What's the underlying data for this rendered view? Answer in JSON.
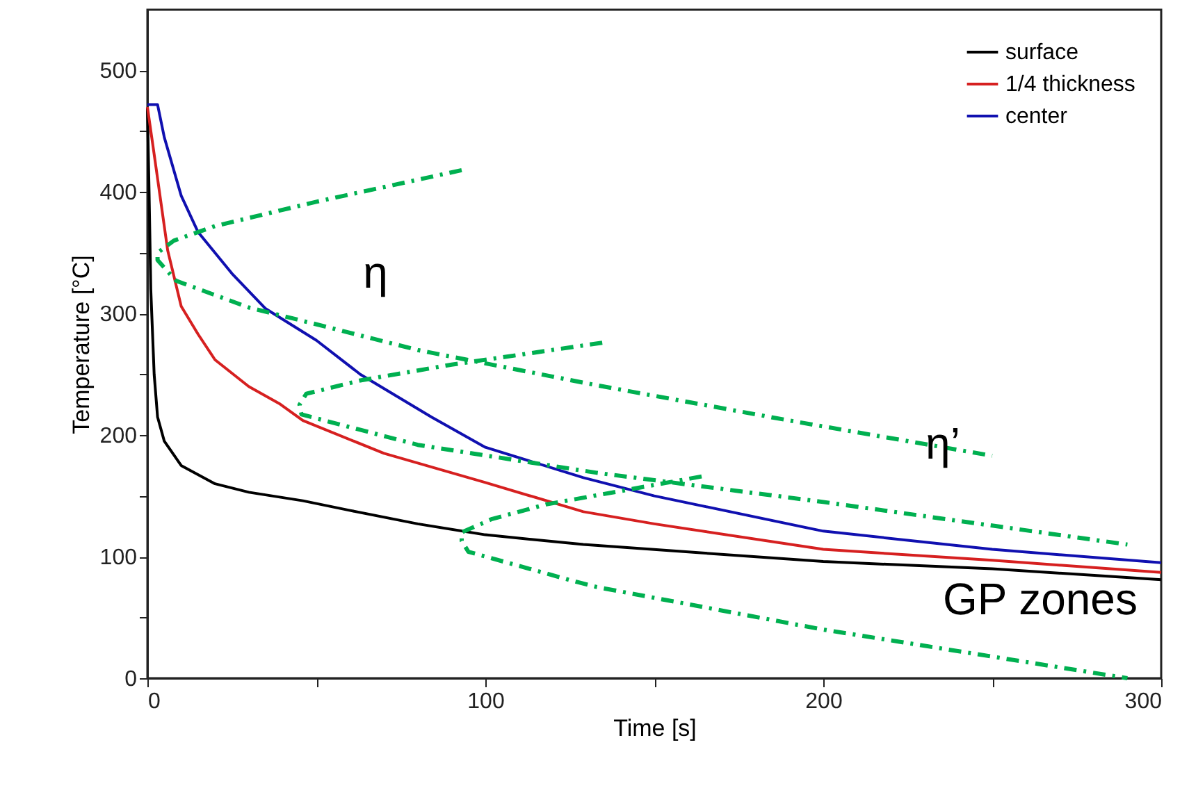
{
  "chart_data": {
    "type": "line",
    "xlabel": "Time [s]",
    "ylabel": "Temperature [°C]",
    "xlim": [
      0,
      300
    ],
    "ylim": [
      0,
      550
    ],
    "xticks": [
      0,
      {
        "value": 50,
        "label": null
      },
      100,
      {
        "value": 150,
        "label": null
      },
      200,
      {
        "value": 250,
        "label": null
      },
      300
    ],
    "yticks": [
      0,
      {
        "value": 50,
        "label": null
      },
      100,
      {
        "value": 150,
        "label": null
      },
      200,
      {
        "value": 250,
        "label": null
      },
      300,
      {
        "value": 350,
        "label": null
      },
      400,
      {
        "value": 450,
        "label": null
      },
      500
    ],
    "grid": false,
    "legend": "top right",
    "series": [
      {
        "name": "surface",
        "color": "#000000",
        "x": [
          0,
          0.5,
          1,
          2,
          3,
          5,
          10,
          20,
          30,
          46,
          60,
          80,
          100,
          129,
          200,
          250,
          300
        ],
        "values": [
          469,
          400,
          320,
          250,
          215,
          195,
          175,
          160,
          153,
          146,
          138,
          127,
          118,
          110,
          96,
          90,
          81
        ]
      },
      {
        "name": "1/4 thickness",
        "color": "#d62020",
        "x": [
          0,
          2,
          6,
          10,
          15,
          20,
          30,
          39,
          46,
          70,
          100,
          129,
          150,
          200,
          250,
          300
        ],
        "values": [
          470,
          431,
          352,
          306,
          283,
          262,
          240,
          226,
          212,
          185,
          161,
          137,
          127,
          106,
          97,
          87
        ]
      },
      {
        "name": "center",
        "color": "#1010b0",
        "x": [
          0,
          3,
          5,
          10,
          15,
          25,
          35,
          50,
          63,
          84,
          100,
          129,
          150,
          200,
          250,
          300
        ],
        "values": [
          472,
          472,
          445,
          397,
          367,
          333,
          304,
          278,
          250,
          215,
          190,
          165,
          150,
          121,
          106,
          95
        ]
      },
      {
        "type": "line",
        "color": "#00b050",
        "line_style": "dashed",
        "x": [
          93,
          50,
          20,
          7.8,
          3,
          3,
          8.5,
          30,
          46,
          80,
          133,
          190,
          250
        ],
        "values": [
          418,
          392,
          372,
          360,
          350,
          344,
          327,
          305,
          294,
          270,
          241,
          212,
          183
        ]
      },
      {
        "type": "line",
        "color": "#00b050",
        "line_style": "dashed",
        "x": [
          134.6,
          90,
          63,
          47,
          45,
          45.6,
          80,
          133,
          200,
          290
        ],
        "values": [
          276,
          258,
          245,
          234,
          225,
          217,
          192,
          169,
          145,
          110
        ]
      },
      {
        "type": "line",
        "color": "#00b050",
        "line_style": "dashed",
        "x": [
          164,
          118,
          102,
          93,
          93,
          95,
          126,
          133,
          200,
          290
        ],
        "values": [
          166,
          143,
          131,
          120,
          113,
          104,
          80,
          75,
          40,
          0
        ]
      }
    ],
    "annotations": [
      "η",
      "η’",
      "GP zones"
    ]
  }
}
